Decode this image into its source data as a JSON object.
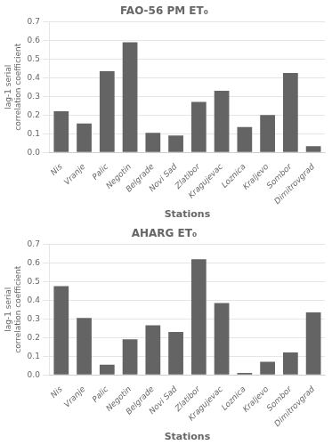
{
  "chart_data": [
    {
      "type": "bar",
      "title": "FAO-56 PM ET₀",
      "categories": [
        "Nis",
        "Vranje",
        "Palic",
        "Negotin",
        "Belgrade",
        "Novi Sad",
        "Zlatibor",
        "Kragujevac",
        "Loznica",
        "Kraljevo",
        "Sombor",
        "Dimitrovgrad"
      ],
      "values": [
        0.22,
        0.155,
        0.435,
        0.59,
        0.105,
        0.09,
        0.27,
        0.33,
        0.135,
        0.2,
        0.425,
        0.033
      ],
      "color": "#646464",
      "xlabel": "Stations",
      "ylabel": "lag-1 serial\ncorrelation coefficient",
      "ylim": [
        0,
        0.7
      ],
      "yticks": [
        {
          "value": 0.0,
          "label": "0.0"
        },
        0.1,
        0.2,
        0.3,
        0.4,
        0.5,
        0.6,
        0.7
      ],
      "grid": "y"
    },
    {
      "type": "bar",
      "title": "AHARG ET₀",
      "categories": [
        "Nis",
        "Vranje",
        "Palic",
        "Negotin",
        "Belgrade",
        "Novi Sad",
        "Zlatibor",
        "Kragujevac",
        "Loznica",
        "Kraljevo",
        "Sombor",
        "Dimitrovgrad"
      ],
      "values": [
        0.475,
        0.305,
        0.055,
        0.19,
        0.265,
        0.23,
        0.62,
        0.385,
        0.01,
        0.07,
        0.12,
        0.335
      ],
      "color": "#646464",
      "xlabel": "Stations",
      "ylabel": "lag-1 serial\ncorrelation coefficient",
      "ylim": [
        0,
        0.7
      ],
      "yticks": [
        {
          "value": 0.0,
          "label": "0.0"
        },
        0.1,
        0.2,
        0.3,
        0.4,
        0.5,
        0.6,
        0.7
      ],
      "grid": "y"
    }
  ]
}
